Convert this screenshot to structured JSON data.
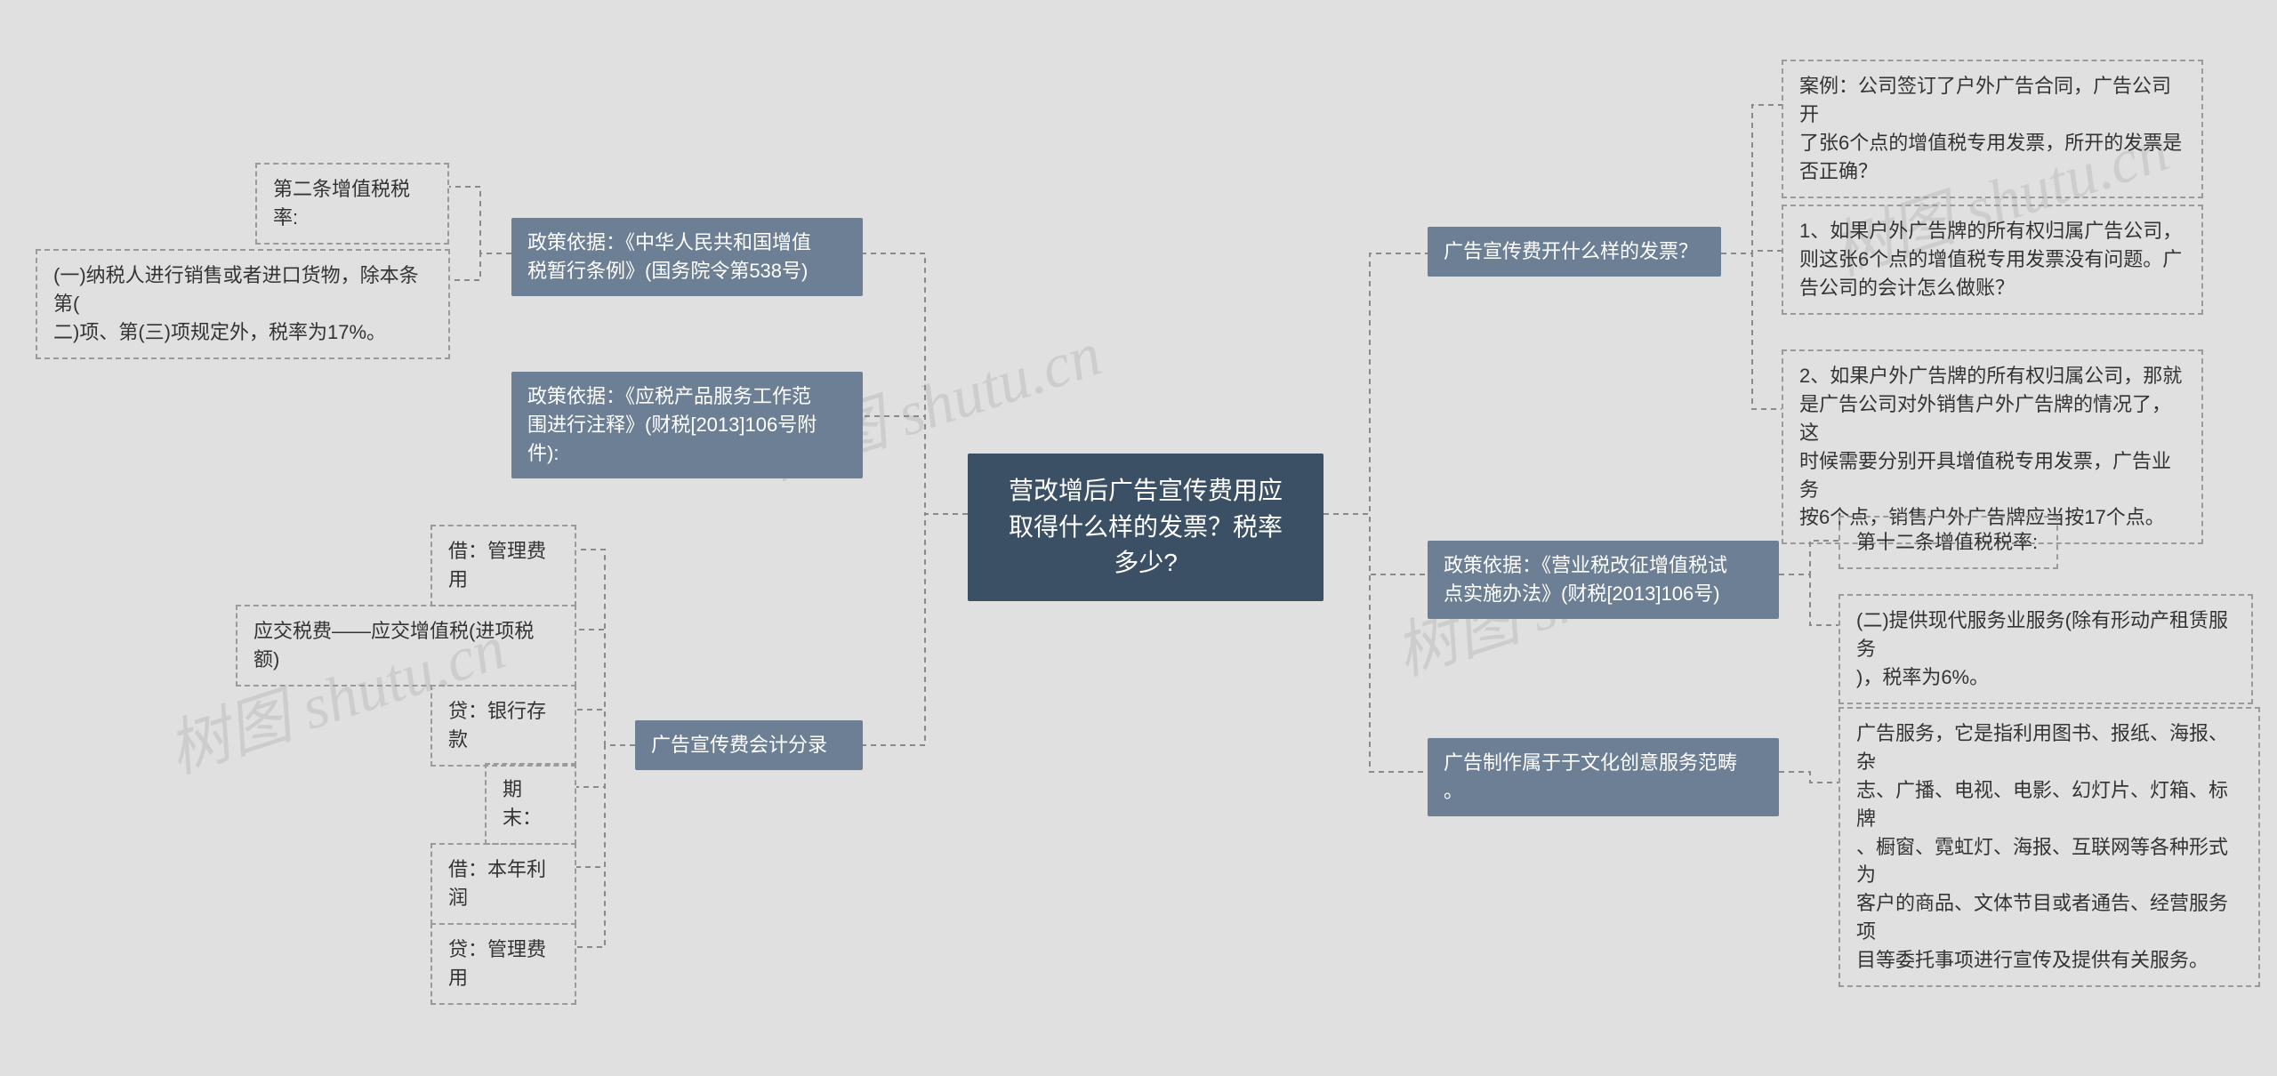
{
  "background_color": "#e0e0e0",
  "root_bg": "#3b4f65",
  "secondary_bg": "#6d7f95",
  "leaf_border": "#9a9a9a",
  "text_color_light": "#ffffff",
  "text_color_dark": "#333333",
  "connector_color": "#8a8a8a",
  "watermark_text": "树图 shutu.cn",
  "root": {
    "text": "营改增后广告宣传费用应\n取得什么样的发票？税率\n多少?"
  },
  "left": [
    {
      "label": "政策依据：《中华人民共和国增值\n税暂行条例》(国务院令第538号)",
      "children": [
        {
          "text": "第二条增值税税率:"
        },
        {
          "text": "(一)纳税人进行销售或者进口货物，除本条第(\n二)项、第(三)项规定外，税率为17%。"
        }
      ]
    },
    {
      "label": "政策依据：《应税产品服务工作范\n围进行注释》(财税[2013]106号附\n件):",
      "children": []
    },
    {
      "label": "广告宣传费会计分录",
      "children": [
        {
          "text": "借：管理费用"
        },
        {
          "text": "应交税费——应交增值税(进项税额)"
        },
        {
          "text": "贷：银行存款"
        },
        {
          "text": "期末："
        },
        {
          "text": "借：本年利润"
        },
        {
          "text": "贷：管理费用"
        }
      ]
    }
  ],
  "right": [
    {
      "label": "广告宣传费开什么样的发票？",
      "children": [
        {
          "text": "案例：公司签订了户外广告合同，广告公司开\n了张6个点的增值税专用发票，所开的发票是\n否正确？"
        },
        {
          "text": "1、如果户外广告牌的所有权归属广告公司，\n则这张6个点的增值税专用发票没有问题。广\n告公司的会计怎么做账？"
        },
        {
          "text": "2、如果户外广告牌的所有权归属公司，那就\n是广告公司对外销售户外广告牌的情况了，这\n时候需要分别开具增值税专用发票，广告业务\n按6个点，销售户外广告牌应当按17个点。"
        }
      ]
    },
    {
      "label": "政策依据：《营业税改征增值税试\n点实施办法》(财税[2013]106号)",
      "children": [
        {
          "text": "第十二条增值税税率:"
        },
        {
          "text": "(二)提供现代服务业服务(除有形动产租赁服务\n)，税率为6%。"
        }
      ]
    },
    {
      "label": "广告制作属于于文化创意服务范畴\n。",
      "children": [
        {
          "text": "广告服务，它是指利用图书、报纸、海报、杂\n志、广播、电视、电影、幻灯片、灯箱、标牌\n、橱窗、霓虹灯、海报、互联网等各种形式为\n客户的商品、文体节目或者通告、经营服务项\n目等委托事项进行宣传及提供有关服务。"
        }
      ]
    }
  ]
}
